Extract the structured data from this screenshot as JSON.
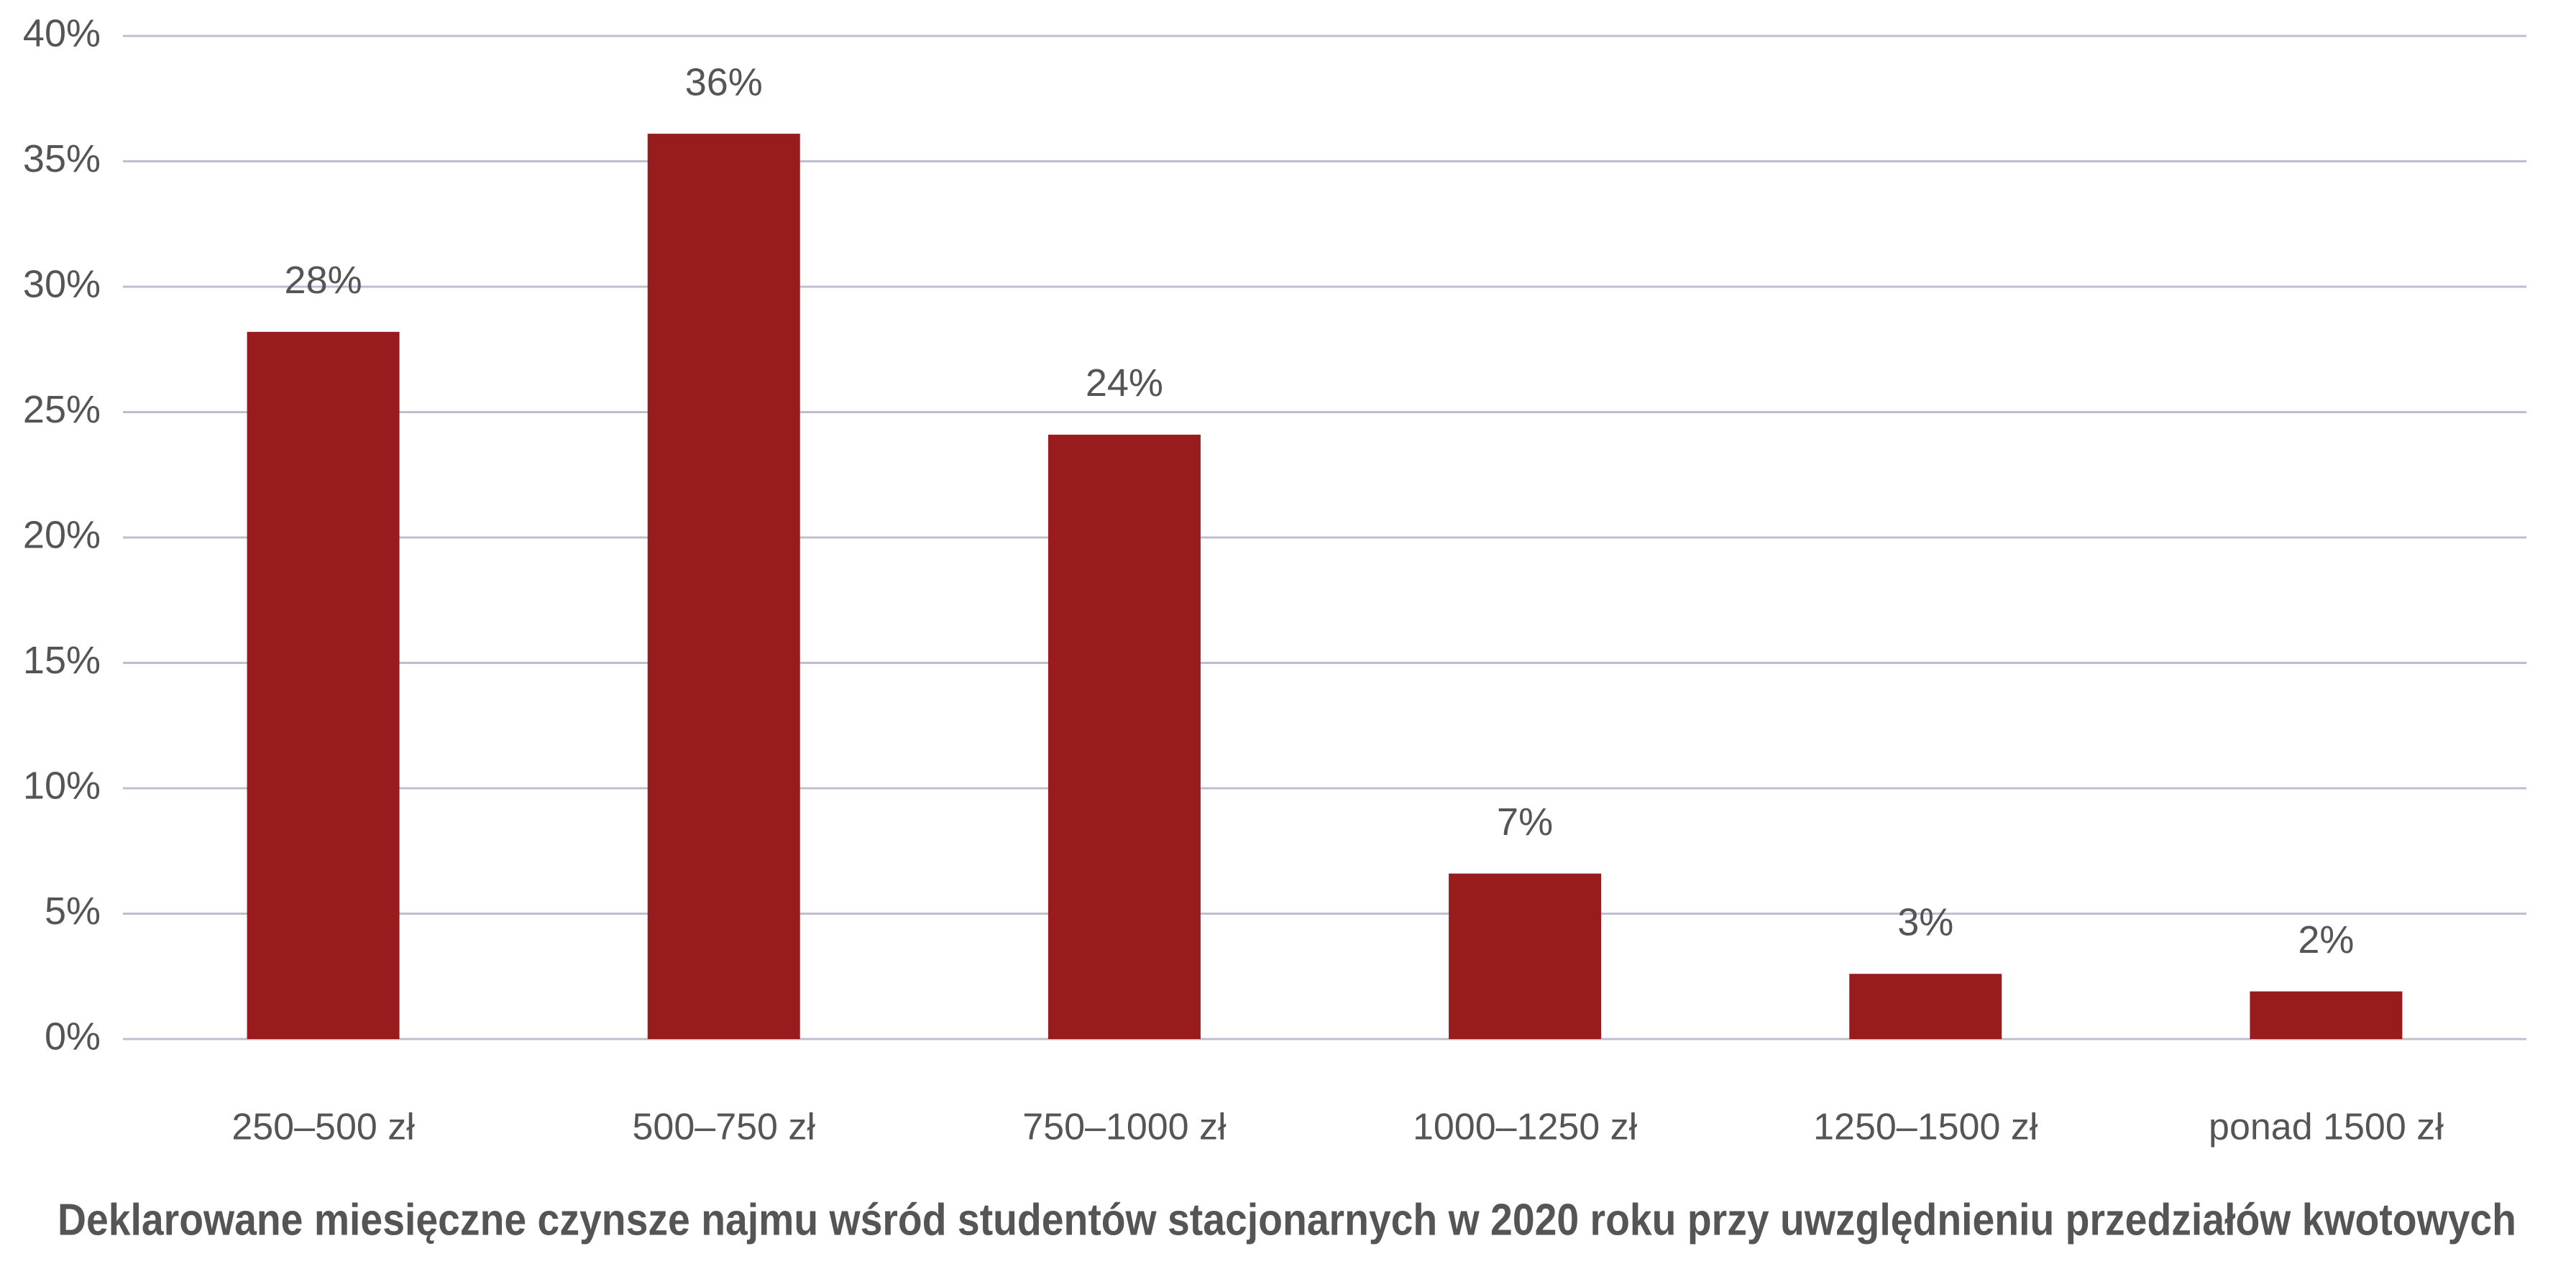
{
  "chart_data": {
    "type": "bar",
    "title": "Deklarowane miesięczne czynsze najmu wśród studentów stacjonarnych w 2020 roku przy uwzględnieniu przedziałów kwotowych",
    "categories": [
      "250–500 zł",
      "500–750 zł",
      "750–1000 zł",
      "1000–1250 zł",
      "1250–1500 zł",
      "ponad 1500 zł"
    ],
    "values": [
      28.2,
      36.1,
      24.1,
      6.6,
      2.6,
      1.9
    ],
    "value_labels": [
      "28%",
      "36%",
      "24%",
      "7%",
      "3%",
      "2%"
    ],
    "color": "#981b1e",
    "ylim": [
      0,
      40
    ],
    "yticks": [
      {
        "value": 0,
        "label": "0%"
      },
      {
        "value": 5,
        "label": "5%"
      },
      {
        "value": 10,
        "label": "10%"
      },
      {
        "value": 15,
        "label": "15%"
      },
      {
        "value": 20,
        "label": "20%"
      },
      {
        "value": 25,
        "label": "25%"
      },
      {
        "value": 30,
        "label": "30%"
      },
      {
        "value": 35,
        "label": "35%"
      },
      {
        "value": 40,
        "label": "40%"
      }
    ],
    "grid": true
  }
}
